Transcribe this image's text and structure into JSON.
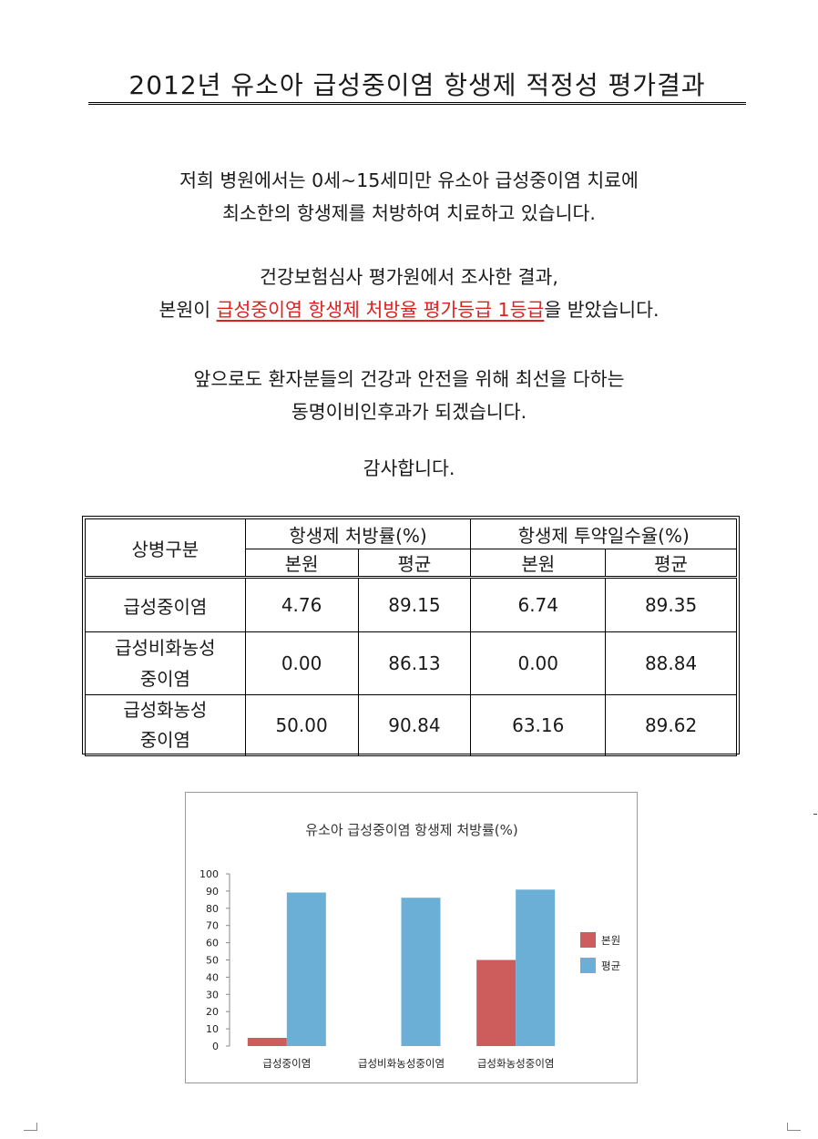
{
  "title": "2012년 유소아 급성중이염 항생제 적정성 평가결과",
  "intro": {
    "line1": "저희 병원에서는 0세~15세미만 유소아 급성중이염 치료에",
    "line2": "최소한의 항생제를 처방하여 치료하고 있습니다."
  },
  "result": {
    "line1": "건강보험심사 평가원에서 조사한 결과,",
    "line2_prefix": "본원이 ",
    "line2_highlight": "급성중이염 항생제 처방율 평가등급 1등급",
    "line2_suffix": "을 받았습니다."
  },
  "closing": {
    "line1": "앞으로도 환자분들의 건강과 안전을 위해 최선을 다하는",
    "line2": "동명이비인후과가 되겠습니다.",
    "thanks": "감사합니다."
  },
  "table": {
    "category_header": "상병구분",
    "group1_header": "항생제 처방률(%)",
    "group2_header": "항생제 투약일수율(%)",
    "sub_headers": [
      "본원",
      "평균",
      "본원",
      "평균"
    ],
    "rows": [
      {
        "label": [
          "급성중이염"
        ],
        "values": [
          "4.76",
          "89.15",
          "6.74",
          "89.35"
        ]
      },
      {
        "label": [
          "급성비화농성",
          "중이염"
        ],
        "values": [
          "0.00",
          "86.13",
          "0.00",
          "88.84"
        ]
      },
      {
        "label": [
          "급성화농성",
          "중이염"
        ],
        "values": [
          "50.00",
          "90.84",
          "63.16",
          "89.62"
        ]
      }
    ]
  },
  "chart_data": {
    "type": "bar",
    "title": "유소아 급성중이염 항생제 처방률(%)",
    "categories": [
      "급성중이염",
      "급성비화농성중이염",
      "급성화농성중이염"
    ],
    "series": [
      {
        "name": "본원",
        "values": [
          4.76,
          0.0,
          50.0
        ],
        "color": "#cd5c5c"
      },
      {
        "name": "평균",
        "values": [
          89.15,
          86.13,
          90.84
        ],
        "color": "#6baed6"
      }
    ],
    "ylim": [
      0,
      100
    ],
    "yticks": [
      "0",
      "10",
      "20",
      "30",
      "40",
      "50",
      "60",
      "70",
      "80",
      "90",
      "100"
    ],
    "legend": "right",
    "grid": false
  }
}
